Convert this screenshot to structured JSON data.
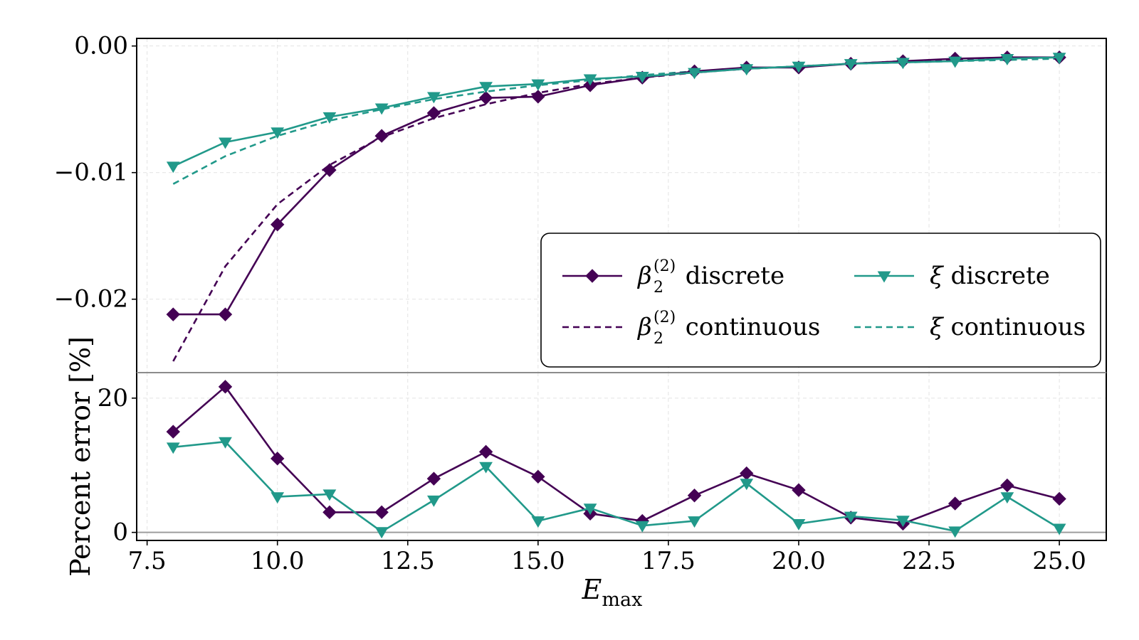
{
  "chart_data": [
    {
      "panel": "top",
      "type": "line",
      "xlim": [
        7.3,
        25.9
      ],
      "ylim": [
        -0.0258,
        0.0006
      ],
      "x_ticks": [
        7.5,
        10.0,
        12.5,
        15.0,
        17.5,
        20.0,
        22.5,
        25.0
      ],
      "y_ticks": [
        0.0,
        -0.01,
        -0.02
      ],
      "y_tick_labels": [
        "0.00",
        "−0.01",
        "−0.02"
      ],
      "grid": true,
      "legend_position": "lower-right",
      "series": [
        {
          "key": "beta_discrete",
          "name_base": "β",
          "name_sup": "(2)",
          "name_sub": "2",
          "name_suffix": " discrete",
          "color": "#440154",
          "line": "solid",
          "marker": "diamond",
          "x": [
            8,
            9,
            10,
            11,
            12,
            13,
            14,
            15,
            16,
            17,
            18,
            19,
            20,
            21,
            22,
            23,
            24,
            25
          ],
          "y": [
            -0.0212,
            -0.0212,
            -0.0141,
            -0.0098,
            -0.0071,
            -0.0053,
            -0.0041,
            -0.004,
            -0.0031,
            -0.0025,
            -0.002,
            -0.0017,
            -0.0017,
            -0.0014,
            -0.0012,
            -0.001,
            -0.0009,
            -0.0009
          ]
        },
        {
          "key": "beta_continuous",
          "name_base": "β",
          "name_sup": "(2)",
          "name_sub": "2",
          "name_suffix": " continuous",
          "color": "#440154",
          "line": "dashed",
          "marker": "none",
          "x": [
            8,
            9,
            10,
            11,
            12,
            13,
            14,
            15,
            16,
            17,
            18,
            19,
            20,
            21,
            22,
            23,
            24,
            25
          ],
          "y": [
            -0.0249,
            -0.0174,
            -0.0125,
            -0.0094,
            -0.0072,
            -0.0057,
            -0.0046,
            -0.0037,
            -0.003,
            -0.0025,
            -0.0021,
            -0.0018,
            -0.0016,
            -0.0014,
            -0.0012,
            -0.0011,
            -0.001,
            -0.0009
          ]
        },
        {
          "key": "xi_discrete",
          "name_base": "ξ",
          "name_sup": "",
          "name_sub": "",
          "name_suffix": " discrete",
          "color": "#21998a",
          "line": "solid",
          "marker": "triangle-down",
          "x": [
            8,
            9,
            10,
            11,
            12,
            13,
            14,
            15,
            16,
            17,
            18,
            19,
            20,
            21,
            22,
            23,
            24,
            25
          ],
          "y": [
            -0.0095,
            -0.0076,
            -0.0068,
            -0.0056,
            -0.0049,
            -0.004,
            -0.0032,
            -0.003,
            -0.0026,
            -0.0024,
            -0.0021,
            -0.0018,
            -0.0016,
            -0.0014,
            -0.0013,
            -0.0012,
            -0.001,
            -0.0009
          ]
        },
        {
          "key": "xi_continuous",
          "name_base": "ξ",
          "name_sup": "",
          "name_sub": "",
          "name_suffix": " continuous",
          "color": "#21998a",
          "line": "dashed",
          "marker": "none",
          "x": [
            8,
            9,
            10,
            11,
            12,
            13,
            14,
            15,
            16,
            17,
            18,
            19,
            20,
            21,
            22,
            23,
            24,
            25
          ],
          "y": [
            -0.0109,
            -0.0087,
            -0.0071,
            -0.0059,
            -0.005,
            -0.0042,
            -0.0036,
            -0.0031,
            -0.0027,
            -0.0023,
            -0.002,
            -0.0018,
            -0.0016,
            -0.0014,
            -0.0013,
            -0.0012,
            -0.0011,
            -0.001
          ]
        }
      ]
    },
    {
      "panel": "bottom",
      "type": "line",
      "xlabel_base": "E",
      "xlabel_sub": "max",
      "ylabel": "Percent error [%]",
      "xlim": [
        7.3,
        25.9
      ],
      "ylim": [
        -1.2,
        23.8
      ],
      "x_ticks": [
        7.5,
        10.0,
        12.5,
        15.0,
        17.5,
        20.0,
        22.5,
        25.0
      ],
      "x_tick_labels": [
        "7.5",
        "10.0",
        "12.5",
        "15.0",
        "17.5",
        "20.0",
        "22.5",
        "25.0"
      ],
      "y_ticks": [
        0,
        20
      ],
      "y_tick_labels": [
        "0",
        "20"
      ],
      "hlines": [
        0
      ],
      "grid": true,
      "series": [
        {
          "key": "beta_discrete",
          "color": "#440154",
          "line": "solid",
          "marker": "diamond",
          "x": [
            8,
            9,
            10,
            11,
            12,
            13,
            14,
            15,
            16,
            17,
            18,
            19,
            20,
            21,
            22,
            23,
            24,
            25
          ],
          "y": [
            15.0,
            21.7,
            11.0,
            3.0,
            3.0,
            8.0,
            12.0,
            8.3,
            2.8,
            1.7,
            5.5,
            8.8,
            6.3,
            2.2,
            1.3,
            4.3,
            7.0,
            5.0
          ]
        },
        {
          "key": "xi_discrete",
          "color": "#21998a",
          "line": "solid",
          "marker": "triangle-down",
          "x": [
            8,
            9,
            10,
            11,
            12,
            13,
            14,
            15,
            16,
            17,
            18,
            19,
            20,
            21,
            22,
            23,
            24,
            25
          ],
          "y": [
            12.7,
            13.5,
            5.3,
            5.7,
            0.1,
            4.8,
            9.8,
            1.7,
            3.6,
            1.0,
            1.7,
            7.3,
            1.3,
            2.4,
            1.8,
            0.2,
            5.3,
            0.6
          ]
        }
      ]
    }
  ]
}
